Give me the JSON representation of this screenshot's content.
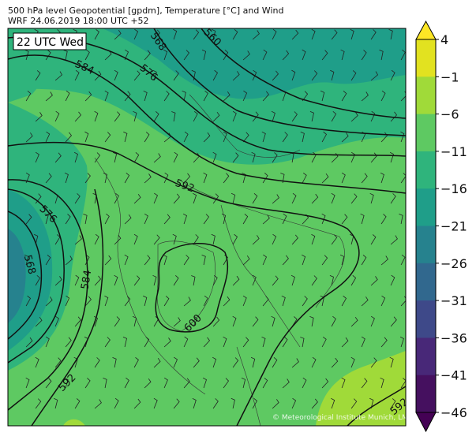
{
  "title": "500 hPa level Geopotential [gpdm], Temperature [°C] and Wind",
  "subtitle": "WRF 24.06.2019 18:00 UTC +52",
  "time_label": "22 UTC Wed",
  "copyright": "© Meteorological Institute Munich, LMU",
  "chart_data": {
    "type": "heatmap",
    "description_fields": [
      "geopotential contours",
      "temperature fill",
      "wind barbs"
    ],
    "contour_labels": [
      "568",
      "560",
      "584",
      "576",
      "592",
      "576",
      "568",
      "584",
      "600",
      "592",
      "592"
    ],
    "colorbar": {
      "ticks": [
        "4",
        "−1",
        "−6",
        "−11",
        "−16",
        "−21",
        "−26",
        "−31",
        "−36",
        "−41",
        "−46"
      ],
      "levels": [
        4,
        -1,
        -6,
        -11,
        -16,
        -21,
        -26,
        -31,
        -36,
        -41,
        -46
      ],
      "colors": [
        "#e2e220",
        "#a0da39",
        "#5ec962",
        "#2fb47c",
        "#1f9e89",
        "#26828e",
        "#31688e",
        "#3e4989",
        "#482878",
        "#45105f"
      ],
      "extend_max_color": "#fde725",
      "extend_min_color": "#440154"
    }
  }
}
